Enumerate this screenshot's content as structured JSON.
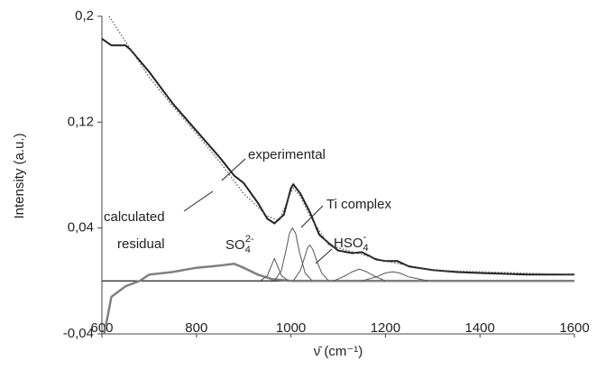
{
  "chart_data": {
    "type": "line",
    "ylabel": "Intensity (a.u.)",
    "xlabel": "ν̄ (cm⁻¹)",
    "xlim": [
      600,
      1600
    ],
    "xticks": [
      600,
      800,
      1000,
      1200,
      1400,
      1600
    ],
    "ylim": [
      -0.04,
      0.2
    ],
    "yticks": [
      {
        "value": -0.04,
        "label": "-0,04"
      },
      {
        "value": 0.04,
        "label": "0,04"
      },
      {
        "value": 0.12,
        "label": "0,12"
      },
      {
        "value": 0.2,
        "label": "0,2"
      }
    ],
    "series": [
      {
        "color": "#222222",
        "style": "solid",
        "width": 2,
        "x": [
          600,
          620,
          650,
          660,
          700,
          750,
          800,
          850,
          880,
          900,
          930,
          950,
          965,
          985,
          1000,
          1005,
          1020,
          1040,
          1060,
          1080,
          1100,
          1130,
          1150,
          1180,
          1200,
          1225,
          1250,
          1300,
          1350,
          1400,
          1500,
          1600
        ],
        "values": [
          0.183,
          0.178,
          0.178,
          0.175,
          0.158,
          0.134,
          0.1135,
          0.093,
          0.0795,
          0.074,
          0.059,
          0.047,
          0.0435,
          0.05,
          0.07,
          0.073,
          0.066,
          0.052,
          0.035,
          0.0286,
          0.023,
          0.021,
          0.0218,
          0.0163,
          0.015,
          0.015,
          0.0109,
          0.0082,
          0.0068,
          0.006,
          0.0048,
          0.0048
        ]
      },
      {
        "color": "#555555",
        "style": "dotted",
        "width": 1.2,
        "x": [
          615,
          650,
          700,
          750,
          800,
          850,
          900,
          950,
          975,
          1000,
          1005,
          1020,
          1040,
          1080,
          1150,
          1200,
          1300,
          1600
        ],
        "values": [
          0.2,
          0.181,
          0.154,
          0.132,
          0.1115,
          0.0897,
          0.066,
          0.049,
          0.0455,
          0.067,
          0.07,
          0.064,
          0.049,
          0.027,
          0.02,
          0.015,
          0.008,
          0.0048
        ]
      },
      {
        "color": "#808080",
        "style": "solid",
        "width": 2.5,
        "x": [
          605,
          620,
          650,
          680,
          700,
          750,
          800,
          850,
          880,
          900,
          930,
          960,
          1000,
          1600
        ],
        "values": [
          -0.04,
          -0.012,
          -0.004,
          0,
          0.0048,
          0.0068,
          0.01,
          0.0116,
          0.013,
          0.01,
          0.0048,
          0.0014,
          0,
          0
        ]
      },
      {
        "color": "#555555",
        "style": "solid",
        "width": 1,
        "x": [
          935,
          950,
          958,
          965,
          972,
          980,
          995
        ],
        "values": [
          0,
          0.004,
          0.011,
          0.017,
          0.011,
          0.004,
          0
        ]
      },
      {
        "color": "#555555",
        "style": "solid",
        "width": 1,
        "x": [
          965,
          980,
          990,
          997,
          1003,
          1010,
          1018,
          1030,
          1045
        ],
        "values": [
          0,
          0.008,
          0.024,
          0.036,
          0.04,
          0.036,
          0.022,
          0.006,
          0
        ]
      },
      {
        "color": "#555555",
        "style": "solid",
        "width": 1,
        "x": [
          1005,
          1020,
          1030,
          1035,
          1040,
          1046,
          1055,
          1065,
          1080
        ],
        "values": [
          0,
          0.008,
          0.019,
          0.025,
          0.027,
          0.024,
          0.015,
          0.006,
          0
        ]
      },
      {
        "color": "#555555",
        "style": "solid",
        "width": 1,
        "x": [
          1090,
          1115,
          1130,
          1145,
          1160,
          1175,
          1200
        ],
        "values": [
          0,
          0.004,
          0.007,
          0.009,
          0.007,
          0.004,
          0
        ]
      },
      {
        "color": "#555555",
        "style": "solid",
        "width": 1,
        "x": [
          1150,
          1180,
          1200,
          1215,
          1230,
          1250,
          1290
        ],
        "values": [
          0,
          0.003,
          0.006,
          0.007,
          0.006,
          0.003,
          0
        ]
      }
    ],
    "annotations": [
      {
        "text": "experimental"
      },
      {
        "text": "calculated"
      },
      {
        "text": "residual"
      },
      {
        "text": "Ti complex"
      },
      {
        "text": "SO",
        "sub": "4",
        "sup": "2-"
      },
      {
        "text": "HSO",
        "sub": "4",
        "sup": "-"
      }
    ]
  }
}
